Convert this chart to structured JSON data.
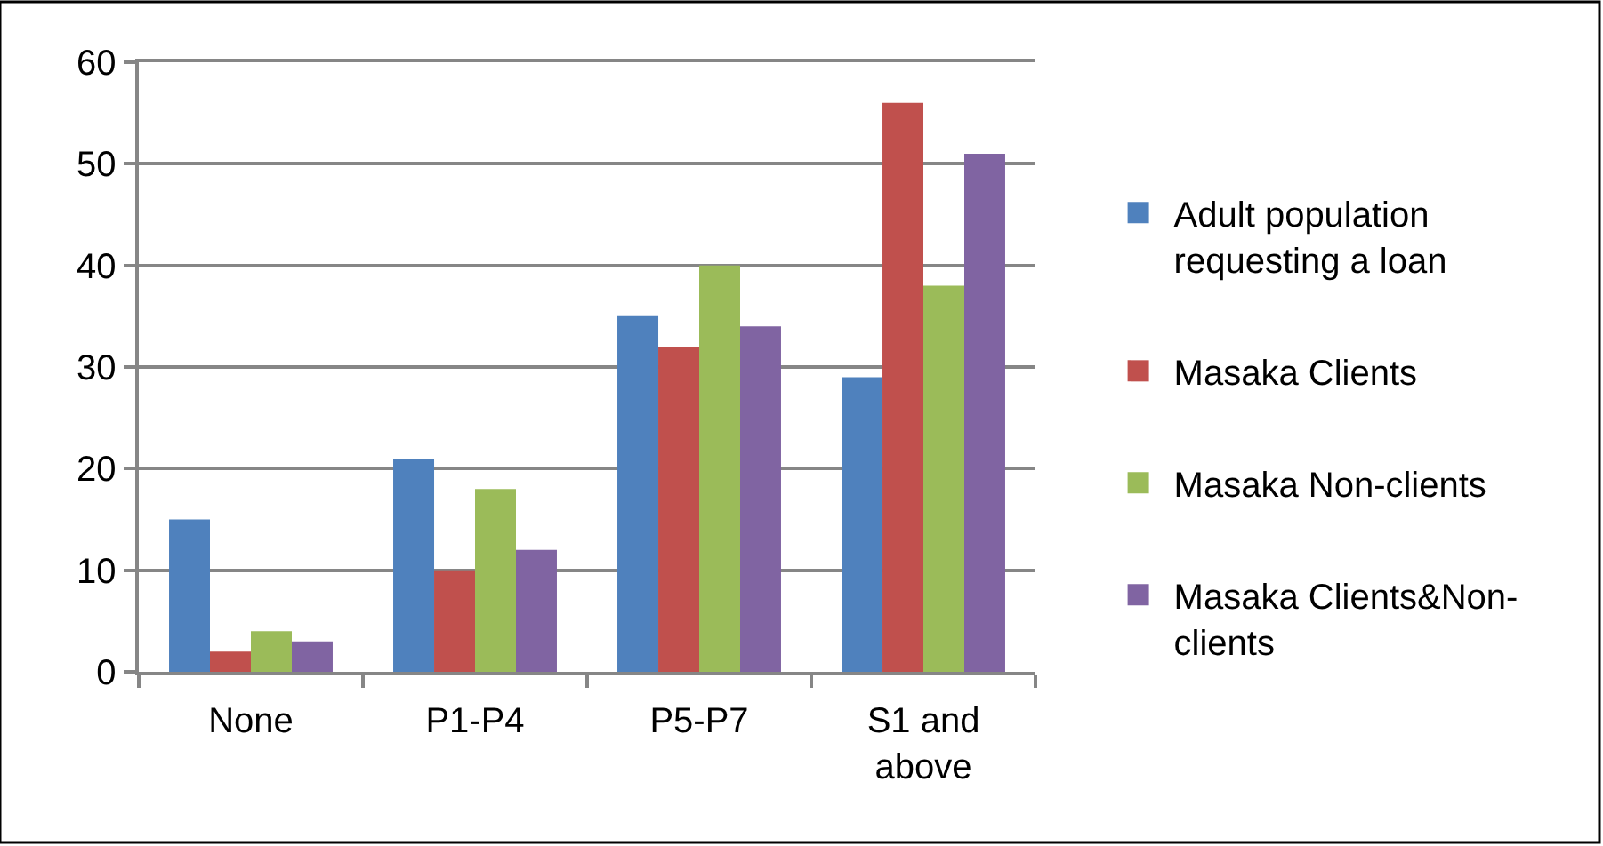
{
  "chart_data": {
    "type": "bar",
    "categories": [
      "None",
      "P1-P4",
      "P5-P7",
      "S1 and above"
    ],
    "series": [
      {
        "name": "Adult population requesting a loan",
        "color": "#4f81bd",
        "values": [
          15,
          21,
          35,
          29
        ]
      },
      {
        "name": "Masaka Clients",
        "color": "#c0504d",
        "values": [
          2,
          10,
          32,
          56
        ]
      },
      {
        "name": "Masaka Non-clients",
        "color": "#9bbb59",
        "values": [
          4,
          18,
          40,
          38
        ]
      },
      {
        "name": "Masaka Clients&Non-clients",
        "color": "#8064a2",
        "values": [
          3,
          12,
          34,
          51
        ]
      }
    ],
    "ylim": [
      0,
      60
    ],
    "yticks": [
      0,
      10,
      20,
      30,
      40,
      50,
      60
    ],
    "grid": "y",
    "legend": "right"
  }
}
